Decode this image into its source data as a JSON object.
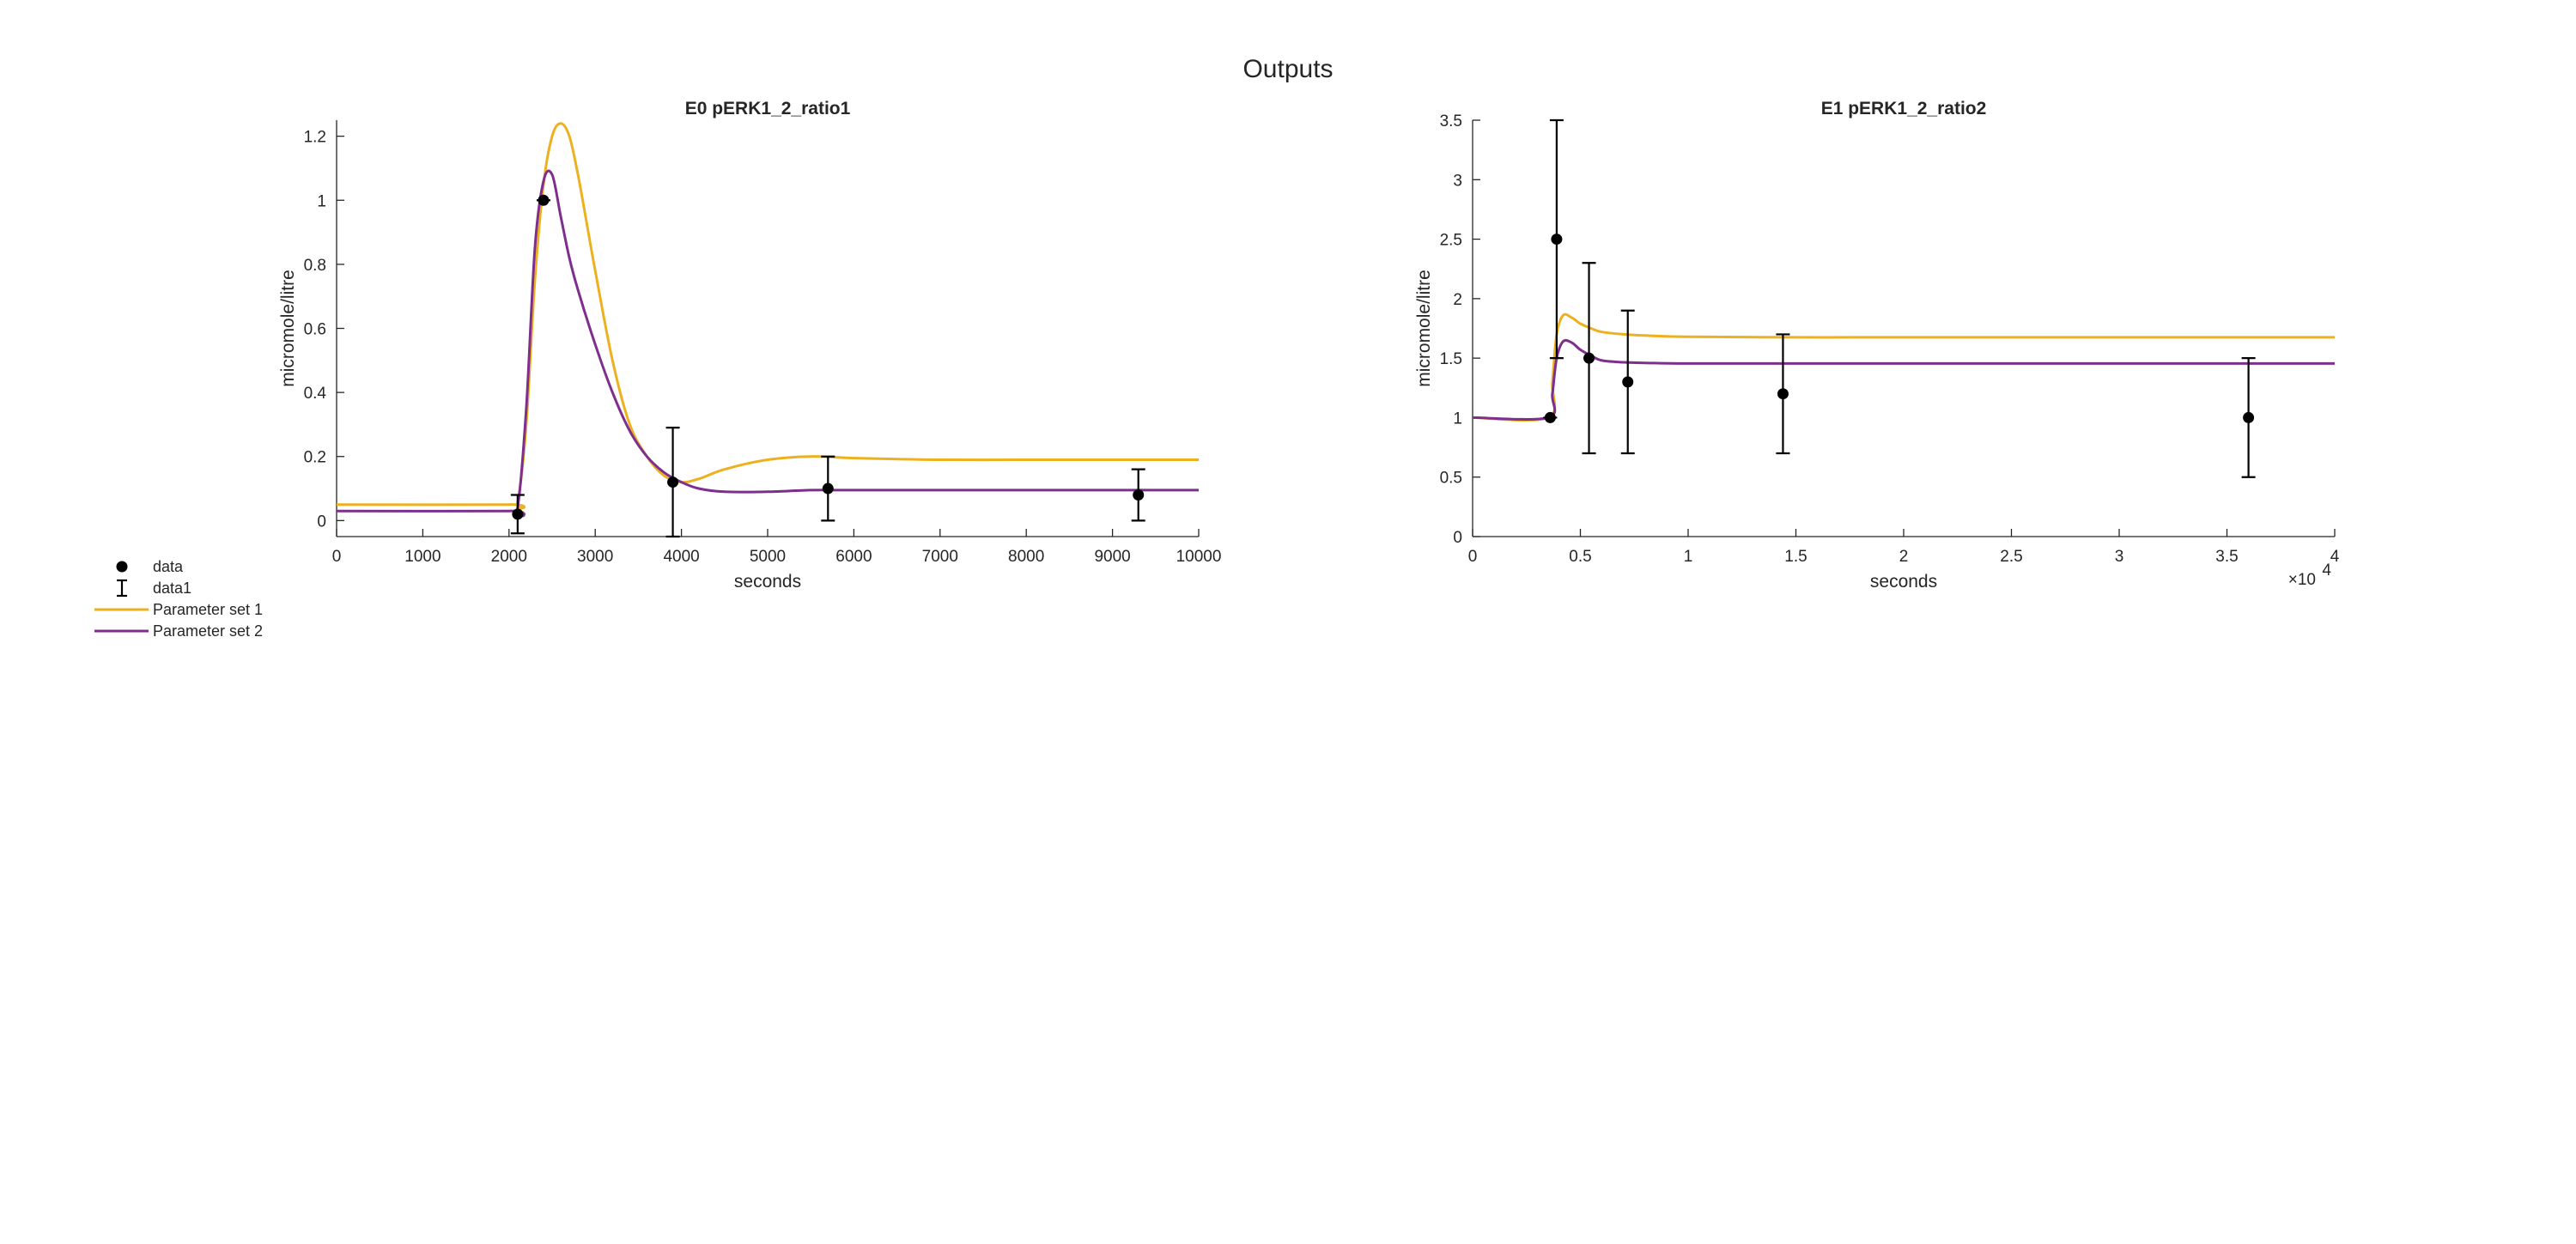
{
  "figure": {
    "title": "Outputs",
    "legend": {
      "placement": "bottom-left",
      "entries": [
        {
          "label": "data",
          "marker": "filled-circle",
          "color": "#000000"
        },
        {
          "label": "data1",
          "marker": "errorbar",
          "color": "#000000"
        },
        {
          "label": "Parameter set 1",
          "marker": "line",
          "color": "#EDB120"
        },
        {
          "label": "Parameter set 2",
          "marker": "line",
          "color": "#7E2F8E"
        }
      ]
    }
  },
  "chart_data": [
    {
      "type": "line",
      "title": "E0 pERK1_2_ratio1",
      "xlabel": "seconds",
      "ylabel": "micromole/litre",
      "xlim": [
        0,
        10000
      ],
      "ylim": [
        -0.05,
        1.25
      ],
      "xticks": [
        0,
        1000,
        2000,
        3000,
        4000,
        5000,
        6000,
        7000,
        8000,
        9000,
        10000
      ],
      "xtick_labels": [
        "0",
        "1000",
        "2000",
        "3000",
        "4000",
        "5000",
        "6000",
        "7000",
        "8000",
        "9000",
        "10000"
      ],
      "yticks": [
        0,
        0.2,
        0.4,
        0.6,
        0.8,
        1,
        1.2
      ],
      "ytick_labels": [
        "0",
        "0.2",
        "0.4",
        "0.6",
        "0.8",
        "1",
        "1.2"
      ],
      "x_exponent_label": "",
      "grid": false,
      "data_points": [
        {
          "x": 2100,
          "y": 0.02,
          "err_low": -0.04,
          "err_high": 0.08
        },
        {
          "x": 2400,
          "y": 1.0,
          "err_low": 1.0,
          "err_high": 1.0
        },
        {
          "x": 3900,
          "y": 0.12,
          "err_low": -0.05,
          "err_high": 0.29
        },
        {
          "x": 5700,
          "y": 0.1,
          "err_low": 0.0,
          "err_high": 0.2
        },
        {
          "x": 9300,
          "y": 0.08,
          "err_low": 0.0,
          "err_high": 0.16
        }
      ],
      "series": [
        {
          "name": "Parameter set 1",
          "color": "#EDB120",
          "x": [
            0,
            2000,
            2100,
            2200,
            2300,
            2400,
            2500,
            2600,
            2700,
            2800,
            2900,
            3000,
            3200,
            3400,
            3600,
            3800,
            4000,
            4200,
            4500,
            5000,
            5500,
            6000,
            7000,
            8000,
            9000,
            10000
          ],
          "y": [
            0.05,
            0.05,
            0.06,
            0.3,
            0.75,
            1.05,
            1.2,
            1.24,
            1.2,
            1.08,
            0.93,
            0.78,
            0.5,
            0.3,
            0.2,
            0.14,
            0.12,
            0.13,
            0.16,
            0.19,
            0.2,
            0.195,
            0.19,
            0.19,
            0.19,
            0.19
          ]
        },
        {
          "name": "Parameter set 2",
          "color": "#7E2F8E",
          "x": [
            0,
            2000,
            2100,
            2200,
            2300,
            2400,
            2500,
            2600,
            2700,
            2800,
            3000,
            3200,
            3400,
            3600,
            3800,
            4000,
            4200,
            4500,
            5000,
            5500,
            6000,
            7000,
            8000,
            9000,
            10000
          ],
          "y": [
            0.03,
            0.03,
            0.04,
            0.35,
            0.85,
            1.06,
            1.08,
            0.95,
            0.82,
            0.72,
            0.55,
            0.4,
            0.28,
            0.2,
            0.15,
            0.12,
            0.1,
            0.09,
            0.09,
            0.095,
            0.095,
            0.095,
            0.095,
            0.095,
            0.095
          ]
        }
      ]
    },
    {
      "type": "line",
      "title": "E1 pERK1_2_ratio2",
      "xlabel": "seconds",
      "ylabel": "micromole/litre",
      "xlim": [
        0,
        40000
      ],
      "ylim": [
        0,
        3.5
      ],
      "xticks": [
        0,
        5000,
        10000,
        15000,
        20000,
        25000,
        30000,
        35000,
        40000
      ],
      "xtick_labels": [
        "0",
        "0.5",
        "1",
        "1.5",
        "2",
        "2.5",
        "3",
        "3.5",
        "4"
      ],
      "yticks": [
        0,
        0.5,
        1,
        1.5,
        2,
        2.5,
        3,
        3.5
      ],
      "ytick_labels": [
        "0",
        "0.5",
        "1",
        "1.5",
        "2",
        "2.5",
        "3",
        "3.5"
      ],
      "x_exponent_label": "×10",
      "x_exponent_power": "4",
      "grid": false,
      "data_points": [
        {
          "x": 3600,
          "y": 1.0,
          "err_low": 1.0,
          "err_high": 1.0
        },
        {
          "x": 3900,
          "y": 2.5,
          "err_low": 1.5,
          "err_high": 3.5
        },
        {
          "x": 5400,
          "y": 1.5,
          "err_low": 0.7,
          "err_high": 2.3
        },
        {
          "x": 7200,
          "y": 1.3,
          "err_low": 0.7,
          "err_high": 1.9
        },
        {
          "x": 14400,
          "y": 1.2,
          "err_low": 0.7,
          "err_high": 1.7
        },
        {
          "x": 36000,
          "y": 1.0,
          "err_low": 0.5,
          "err_high": 1.5
        }
      ],
      "series": [
        {
          "name": "Parameter set 1",
          "color": "#EDB120",
          "x": [
            0,
            3500,
            3700,
            3900,
            4200,
            4600,
            5000,
            5500,
            6000,
            7000,
            8000,
            10000,
            15000,
            20000,
            30000,
            40000
          ],
          "y": [
            1.0,
            1.0,
            1.3,
            1.7,
            1.86,
            1.84,
            1.79,
            1.75,
            1.72,
            1.7,
            1.69,
            1.68,
            1.675,
            1.675,
            1.675,
            1.675
          ]
        },
        {
          "name": "Parameter set 2",
          "color": "#7E2F8E",
          "x": [
            0,
            3500,
            3700,
            3900,
            4200,
            4600,
            5000,
            5500,
            6000,
            7000,
            8000,
            10000,
            15000,
            20000,
            30000,
            40000
          ],
          "y": [
            1.0,
            1.0,
            1.2,
            1.5,
            1.64,
            1.63,
            1.57,
            1.52,
            1.48,
            1.465,
            1.46,
            1.455,
            1.455,
            1.455,
            1.455,
            1.455
          ]
        }
      ]
    }
  ]
}
